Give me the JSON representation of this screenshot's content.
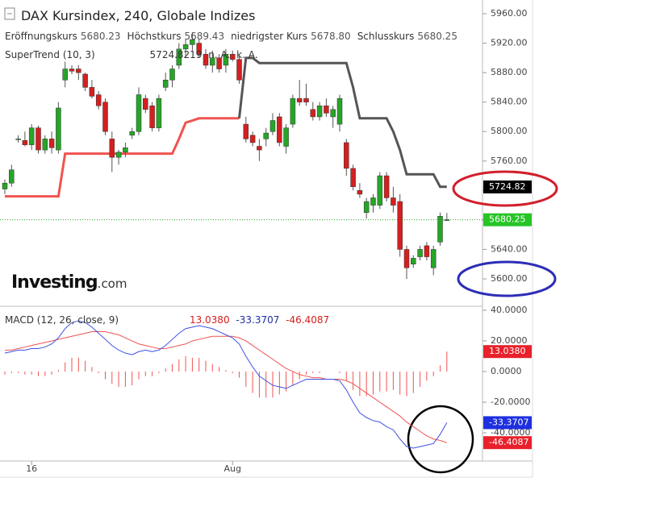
{
  "header": {
    "title": "DAX Kursindex, 240, Globale Indizes",
    "ohlc": [
      {
        "label": "Eröffnungskurs",
        "value": "5680.23"
      },
      {
        "label": "Höchstkurs",
        "value": "5689.43"
      },
      {
        "label": "niedrigster Kurs",
        "value": "5678.80"
      },
      {
        "label": "Schlusskurs",
        "value": "5680.25"
      }
    ]
  },
  "branding": {
    "logo_main": "Investing",
    "logo_suffix": ".com"
  },
  "chart_data": [
    {
      "type": "candlestick",
      "categories": [
        null,
        null,
        null,
        null,
        "16",
        null,
        null,
        null,
        null,
        null,
        null,
        null,
        null,
        null,
        null,
        null,
        null,
        null,
        null,
        null,
        null,
        null,
        null,
        null,
        null,
        null,
        null,
        null,
        null,
        null,
        null,
        null,
        null,
        null,
        "Aug",
        null,
        null,
        null,
        null,
        null,
        null,
        null,
        null,
        null,
        null,
        null,
        null,
        null,
        null,
        null,
        null,
        null,
        null,
        null,
        null,
        null,
        null,
        null,
        null,
        null,
        null,
        null,
        null,
        null,
        null,
        null,
        null
      ],
      "open": [
        5722,
        5730,
        5790,
        5788,
        5782,
        5805,
        5775,
        5790,
        5775,
        5870,
        5885,
        5885,
        5878,
        5860,
        5850,
        5840,
        5790,
        5765,
        5772,
        5795,
        5800,
        5845,
        5835,
        5805,
        5860,
        5870,
        5890,
        5912,
        5918,
        5920,
        5905,
        5890,
        5900,
        5890,
        5905,
        5898,
        5810,
        5795,
        5780,
        5790,
        5800,
        5820,
        5780,
        5810,
        5845,
        5845,
        5830,
        5820,
        5835,
        5820,
        5810,
        5785,
        5750,
        5720,
        5690,
        5700,
        5700,
        5740,
        5710,
        5705,
        5640,
        5620,
        5630,
        5645,
        5615,
        5650,
        5680.23
      ],
      "high": [
        5735,
        5755,
        5795,
        5800,
        5810,
        5808,
        5795,
        5800,
        5840,
        5895,
        5890,
        5890,
        5880,
        5870,
        5855,
        5845,
        5800,
        5775,
        5785,
        5805,
        5860,
        5850,
        5840,
        5850,
        5880,
        5890,
        5920,
        5925,
        5935,
        5925,
        5912,
        5910,
        5905,
        5912,
        5910,
        5902,
        5820,
        5800,
        5790,
        5805,
        5825,
        5825,
        5810,
        5850,
        5870,
        5865,
        5840,
        5840,
        5845,
        5835,
        5850,
        5790,
        5755,
        5730,
        5710,
        5715,
        5745,
        5745,
        5725,
        5715,
        5645,
        5632,
        5645,
        5650,
        5645,
        5690,
        5689.43
      ],
      "low": [
        5715,
        5725,
        5785,
        5780,
        5775,
        5770,
        5770,
        5770,
        5770,
        5860,
        5878,
        5870,
        5855,
        5845,
        5830,
        5795,
        5745,
        5755,
        5765,
        5790,
        5795,
        5825,
        5800,
        5800,
        5855,
        5860,
        5885,
        5900,
        5910,
        5900,
        5885,
        5880,
        5880,
        5880,
        5895,
        5865,
        5785,
        5780,
        5760,
        5780,
        5795,
        5780,
        5770,
        5805,
        5835,
        5835,
        5815,
        5815,
        5820,
        5805,
        5800,
        5740,
        5720,
        5710,
        5682,
        5690,
        5695,
        5705,
        5690,
        5630,
        5600,
        5615,
        5625,
        5625,
        5605,
        5645,
        5678.8
      ],
      "close": [
        5730,
        5748,
        5790,
        5782,
        5805,
        5775,
        5790,
        5778,
        5832,
        5885,
        5882,
        5880,
        5860,
        5848,
        5835,
        5800,
        5765,
        5772,
        5778,
        5800,
        5850,
        5830,
        5805,
        5845,
        5870,
        5885,
        5912,
        5918,
        5925,
        5905,
        5890,
        5900,
        5885,
        5905,
        5898,
        5870,
        5790,
        5785,
        5775,
        5798,
        5815,
        5785,
        5805,
        5845,
        5840,
        5840,
        5820,
        5835,
        5825,
        5830,
        5845,
        5750,
        5725,
        5715,
        5705,
        5710,
        5740,
        5710,
        5700,
        5640,
        5615,
        5628,
        5640,
        5630,
        5640,
        5685,
        5680.25
      ],
      "up_color": "#26a526",
      "down_color": "#d3201f",
      "ylim": [
        5562.8,
        5978.6
      ],
      "yticks": [
        {
          "value": 5600,
          "label": "5600.00"
        },
        {
          "value": 5640,
          "label": "5640.00"
        },
        {
          "value": 5680,
          "label": "5680.00"
        },
        {
          "value": 5720,
          "label": "5720.00"
        },
        {
          "value": 5760,
          "label": "5760.00"
        },
        {
          "value": 5800,
          "label": "5800.00"
        },
        {
          "value": 5840,
          "label": "5840.00"
        },
        {
          "value": 5880,
          "label": "5880.00"
        },
        {
          "value": 5920,
          "label": "5920.00"
        },
        {
          "value": 5960,
          "label": "5960.00"
        }
      ],
      "supertrend": {
        "label": "SuperTrend (10, 3)",
        "value_text": "5724.8219",
        "extra": [
          "n. A.",
          "k. A."
        ],
        "up_color": "#f05350",
        "down_color": "#555555",
        "up_values": [
          5712,
          5712,
          5712,
          5712,
          5712,
          5712,
          5712,
          5712,
          5712,
          5770,
          5770,
          5770,
          5770,
          5770,
          5770,
          5770,
          5770,
          5770,
          5770,
          5770,
          5770,
          5770,
          5770,
          5770,
          5770,
          5770,
          5790,
          5812,
          5815,
          5818,
          5818,
          5818,
          5818,
          5818,
          5818,
          5818,
          null,
          null,
          null,
          null,
          null,
          null,
          null,
          null,
          null,
          null,
          null,
          null,
          null,
          null,
          null,
          null,
          null,
          null,
          null,
          null,
          null,
          null,
          null,
          null,
          null,
          null,
          null,
          null,
          null,
          null,
          null
        ],
        "down_values": [
          null,
          null,
          null,
          null,
          null,
          null,
          null,
          null,
          null,
          null,
          null,
          null,
          null,
          null,
          null,
          null,
          null,
          null,
          null,
          null,
          null,
          null,
          null,
          null,
          null,
          null,
          null,
          null,
          null,
          null,
          null,
          null,
          null,
          null,
          null,
          5818,
          5900,
          5900,
          5893,
          5893,
          5893,
          5893,
          5893,
          5893,
          5893,
          5893,
          5893,
          5893,
          5893,
          5893,
          5893,
          5893,
          5860,
          5818,
          5818,
          5818,
          5818,
          5818,
          5800,
          5775,
          5742,
          5742,
          5742,
          5742,
          5742,
          5725,
          5725
        ]
      },
      "last_line_color": "#26a526",
      "price_tags": [
        {
          "value": 5724.82,
          "color": "#000000"
        },
        {
          "value": 5680.25,
          "color": "#26c526"
        }
      ]
    },
    {
      "type": "macd",
      "title": "MACD (12, 26, close, 9)",
      "macd_color": "#3f51e0",
      "signal_color": "#ef5350",
      "histogram_color": "#ef5350",
      "macd_values": [
        12,
        13,
        14,
        14,
        15,
        15,
        16,
        18,
        22,
        28,
        32,
        33,
        32,
        29,
        25,
        21,
        17,
        14,
        12,
        11,
        13,
        14,
        13,
        14,
        17,
        21,
        25,
        28,
        29,
        30,
        29,
        28,
        26,
        24,
        22,
        18,
        10,
        3,
        -3,
        -6,
        -9,
        -10,
        -11,
        -9,
        -7,
        -5,
        -5,
        -5,
        -5,
        -5,
        -6,
        -12,
        -20,
        -27,
        -30,
        -32,
        -33,
        -36,
        -38,
        -44,
        -49,
        -50,
        -49,
        -48,
        -47,
        -41,
        -33.3707
      ],
      "signal_values": [
        14,
        14,
        15,
        16,
        17,
        18,
        19,
        20,
        21,
        22,
        23,
        24,
        25,
        26,
        26,
        26,
        25,
        24,
        22,
        20,
        18,
        17,
        16,
        15,
        15,
        16,
        17,
        18,
        20,
        21,
        22,
        23,
        23,
        23,
        23,
        22,
        20,
        17,
        14,
        11,
        8,
        5,
        2,
        0,
        -2,
        -3,
        -4,
        -4,
        -5,
        -5,
        -5,
        -6,
        -8,
        -11,
        -14,
        -17,
        -20,
        -23,
        -26,
        -29,
        -33,
        -36,
        -39,
        -42,
        -44,
        -45,
        -46.4087
      ],
      "histogram_values": [
        -2,
        -1,
        -1,
        -2,
        -2,
        -3,
        -3,
        -2,
        1,
        6,
        9,
        9,
        7,
        3,
        -1,
        -5,
        -8,
        -10,
        -10,
        -9,
        -5,
        -3,
        -3,
        -1,
        2,
        5,
        8,
        10,
        9,
        9,
        7,
        5,
        3,
        1,
        -1,
        -4,
        -10,
        -14,
        -17,
        -17,
        -17,
        -15,
        -13,
        -9,
        -5,
        -2,
        -1,
        -1,
        0,
        0,
        -1,
        -6,
        -12,
        -16,
        -16,
        -15,
        -13,
        -13,
        -12,
        -15,
        -16,
        -14,
        -10,
        -6,
        -3,
        4,
        13.038
      ],
      "ylim": [
        -58.4,
        42.6
      ],
      "yticks": [
        {
          "value": -40,
          "label": "-40.0000"
        },
        {
          "value": -20,
          "label": "-20.0000"
        },
        {
          "value": 0,
          "label": "0.0000"
        },
        {
          "value": 20,
          "label": "20.0000"
        },
        {
          "value": 40,
          "label": "40.0000"
        }
      ],
      "tags": [
        {
          "value": 13.038,
          "label": "13.0380",
          "color": "#e8202a"
        },
        {
          "value": -33.3707,
          "label": "-33.3707",
          "color": "#1e2fe0"
        },
        {
          "value": -46.4087,
          "label": "-46.4087",
          "color": "#e8202a"
        }
      ]
    }
  ]
}
